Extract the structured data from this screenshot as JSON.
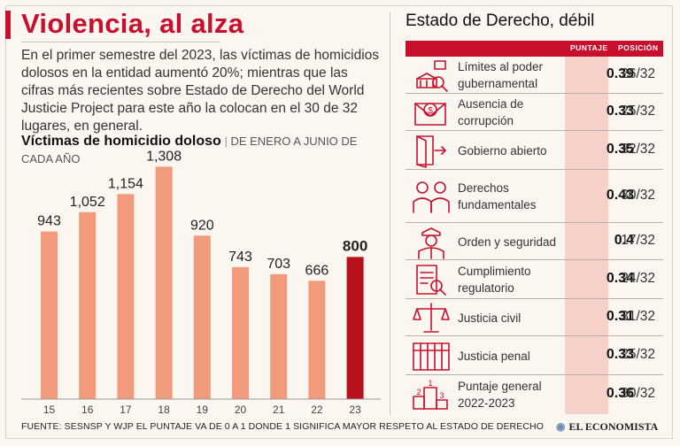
{
  "title": "Violencia, al alza",
  "intro": "En el primer semestre del 2023, las víctimas de homicidios dolosos en la entidad aumentó 20%; mientras que las cifras más recientes sobre Estado de Derecho del World Justicie Project para este año la colocan en el 30 de 32 lugares, en general.",
  "chart_title": "Víctimas de homicidio doloso",
  "chart_subtitle": "DE ENERO A JUNIO DE CADA AÑO",
  "chart_data": {
    "type": "bar",
    "title": "Víctimas de homicidio doloso",
    "subtitle": "DE ENERO A JUNIO DE CADA AÑO",
    "categories": [
      "15",
      "16",
      "17",
      "18",
      "19",
      "20",
      "21",
      "22",
      "23"
    ],
    "values": [
      943,
      1052,
      1154,
      1308,
      920,
      743,
      703,
      666,
      800
    ],
    "value_labels": [
      "943",
      "1,052",
      "1,154",
      "1,308",
      "920",
      "743",
      "703",
      "666",
      "800"
    ],
    "highlight_index": 8,
    "ylim": [
      0,
      1450
    ],
    "grid": false,
    "xlabel": "",
    "ylabel": "",
    "colors": {
      "bar": "#f29a7c",
      "highlight": "#b5121b"
    }
  },
  "panel": {
    "title": "Estado de Derecho, débil",
    "col_score": "PUNTAJE",
    "col_position": "POSICIÓN",
    "rows": [
      {
        "icon": "government-limits-icon",
        "label": "Límites al poder gubernamental",
        "score": "0.39",
        "position": "26/32"
      },
      {
        "icon": "corruption-envelope-icon",
        "label": "Ausencia de corrupción",
        "score": "0.33",
        "position": "25/32"
      },
      {
        "icon": "open-door-icon",
        "label": "Gobierno abierto",
        "score": "0.35",
        "position": "32/32"
      },
      {
        "icon": "people-rights-icon",
        "label": "Derechos fundamentales",
        "score": "0.43",
        "position": "30/32"
      },
      {
        "icon": "police-officer-icon",
        "label": "Orden y seguridad",
        "score": "0.4",
        "position": "17/32"
      },
      {
        "icon": "regulatory-document-icon",
        "label": "Cumplimiento regulatorio",
        "score": "0.34",
        "position": "24/32"
      },
      {
        "icon": "scales-justice-icon",
        "label": "Justicia civil",
        "score": "0.31",
        "position": "31/32"
      },
      {
        "icon": "prison-bars-icon",
        "label": "Justicia penal",
        "score": "0.33",
        "position": "25/32"
      },
      {
        "icon": "podium-icon",
        "label": "Puntaje general 2022-2023",
        "score": "0.36",
        "position": "30/32"
      }
    ]
  },
  "source": "FUENTE: SESNSP Y WJP EL PUNTAJE VA DE 0 A 1 DONDE 1 SIGNIFICA MAYOR RESPETO AL ESTADO DE DERECHO",
  "brand": "EL ECONOMISTA"
}
